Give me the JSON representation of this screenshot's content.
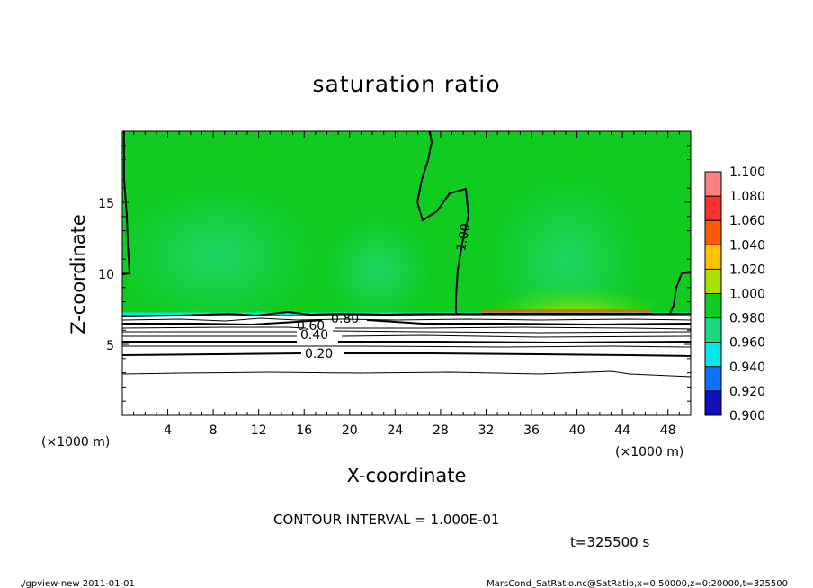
{
  "chart_data": {
    "type": "heatmap",
    "title": "saturation ratio",
    "xlabel": "X-coordinate",
    "ylabel": "Z-coordinate",
    "x_unit": "(×1000 m)",
    "z_unit": "(×1000 m)",
    "xlim": [
      0,
      50
    ],
    "ylim": [
      0,
      20
    ],
    "x_ticks": [
      4,
      8,
      12,
      16,
      20,
      24,
      28,
      32,
      36,
      40,
      44,
      48
    ],
    "y_ticks": [
      5,
      10,
      15
    ],
    "colorbar": {
      "levels": [
        "1.100",
        "1.080",
        "1.060",
        "1.040",
        "1.020",
        "1.000",
        "0.980",
        "0.960",
        "0.940",
        "0.920",
        "0.900"
      ],
      "colors": [
        "#ff8080",
        "#ff3030",
        "#ff5a00",
        "#ffc000",
        "#a8e000",
        "#10cc20",
        "#1ad880",
        "#00e8e8",
        "#1070ff",
        "#1010c0",
        "#6a00b0"
      ]
    },
    "contour_interval": "1.000E-01",
    "contour_labels": [
      "1.00",
      "0.80",
      "0.60",
      "0.40",
      "0.20"
    ],
    "approx_layer_top_z": 7.1,
    "approx_contour_z": {
      "0.20": 4.4,
      "0.40": 5.7,
      "0.60": 6.3,
      "0.80": 6.7,
      "1.00_upper": 20
    }
  },
  "info": {
    "contour_interval_text": "CONTOUR INTERVAL = 1.000E-01",
    "time_text": "t=325500 s"
  },
  "footer": {
    "left": "./gpview-new   2011-01-01",
    "right": "MarsCond_SatRatio.nc@SatRatio,x=0:50000,z=0:20000,t=325500"
  }
}
